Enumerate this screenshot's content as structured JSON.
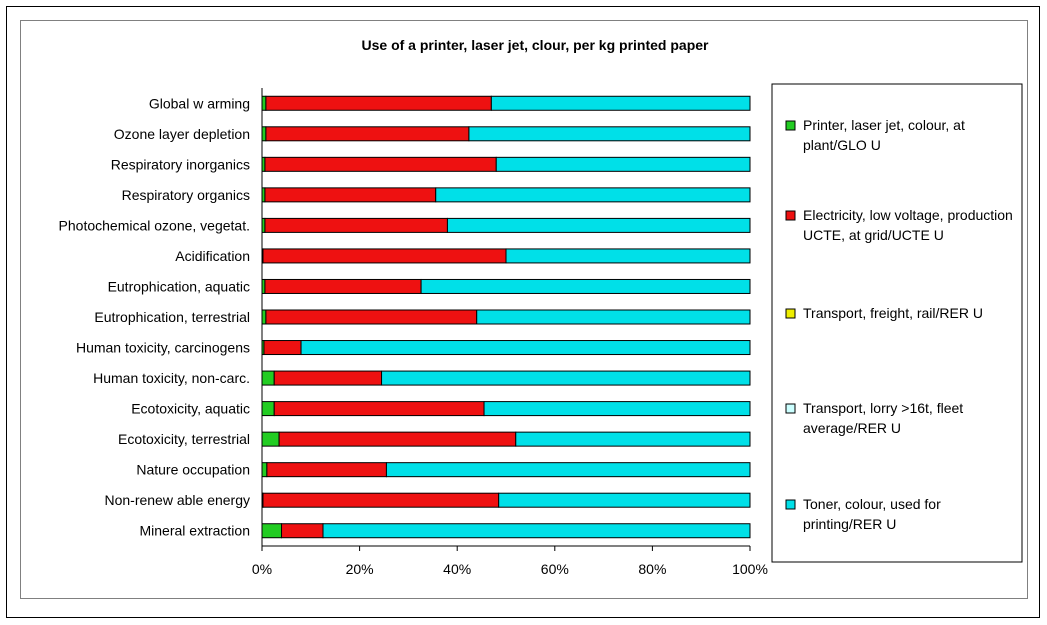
{
  "chart_data": {
    "type": "bar",
    "orientation": "horizontal",
    "stacked": true,
    "percent": true,
    "title": "Use of a printer, laser jet, clour, per kg printed paper",
    "categories": [
      "Global w arming",
      "Ozone layer depletion",
      "Respiratory inorganics",
      "Respiratory organics",
      "Photochemical ozone, vegetat.",
      "Acidification",
      "Eutrophication, aquatic",
      "Eutrophication, terrestrial",
      "Human toxicity, carcinogens",
      "Human toxicity, non-carc.",
      "Ecotoxicity, aquatic",
      "Ecotoxicity, terrestrial",
      "Nature occupation",
      "Non-renew able energy",
      "Mineral extraction"
    ],
    "series": [
      {
        "name": "Printer, laser jet, colour, at plant/GLO U",
        "legend_lines": [
          "Printer, laser jet, colour, at",
          "plant/GLO U"
        ],
        "color": "#22cc22",
        "values": [
          0.8,
          0.8,
          0.6,
          0.6,
          0.6,
          0.2,
          0.6,
          0.8,
          0.4,
          2.5,
          2.5,
          3.5,
          1.0,
          0.2,
          4.0
        ]
      },
      {
        "name": "Electricity, low voltage, production UCTE, at grid/UCTE U",
        "legend_lines": [
          "Electricity, low voltage, production",
          "UCTE, at grid/UCTE U"
        ],
        "color": "#ee1111",
        "values": [
          46.2,
          41.6,
          47.4,
          35.0,
          37.4,
          49.8,
          32.0,
          43.2,
          7.6,
          22.0,
          43.0,
          48.5,
          24.5,
          48.3,
          8.5
        ]
      },
      {
        "name": "Transport, freight, rail/RER U",
        "legend_lines": [
          "Transport, freight, rail/RER U"
        ],
        "color": "#eeee00",
        "values": [
          0,
          0,
          0,
          0,
          0,
          0,
          0,
          0,
          0,
          0,
          0,
          0,
          0,
          0,
          0
        ]
      },
      {
        "name": "Transport, lorry >16t, fleet average/RER U",
        "legend_lines": [
          "Transport, lorry >16t, fleet",
          "average/RER U"
        ],
        "color": "#ccffff",
        "values": [
          0,
          0,
          0,
          0,
          0,
          0,
          0,
          0,
          0,
          0,
          0,
          0,
          0,
          0,
          0
        ]
      },
      {
        "name": "Toner, colour, used for printing/RER U",
        "legend_lines": [
          "Toner, colour, used for",
          "printing/RER U"
        ],
        "color": "#00e0e8",
        "values": [
          53.0,
          57.6,
          52.0,
          64.4,
          62.0,
          50.0,
          67.4,
          56.0,
          92.0,
          75.5,
          54.5,
          48.0,
          74.5,
          51.5,
          87.5
        ]
      }
    ],
    "x_ticks": [
      "0%",
      "20%",
      "40%",
      "60%",
      "80%",
      "100%"
    ],
    "xlim": [
      0,
      100
    ],
    "grid": false,
    "legend_position": "right"
  }
}
